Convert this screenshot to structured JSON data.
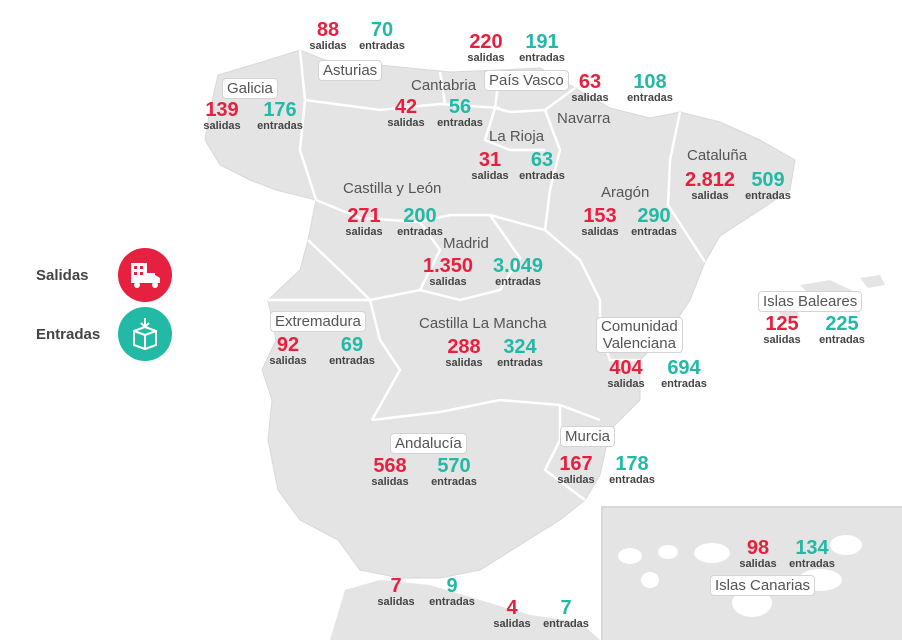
{
  "legend": {
    "salidas_label": "Salidas",
    "entradas_label": "Entradas",
    "salidas_icon": "building-truck-icon",
    "entradas_icon": "box-arrow-in-icon",
    "salidas_color": "#e8203f",
    "entradas_color": "#22b9a5"
  },
  "words": {
    "salidas": "salidas",
    "entradas": "entradas"
  },
  "regions": {
    "galicia": {
      "name": "Galicia",
      "salidas": "139",
      "entradas": "176"
    },
    "asturias": {
      "name": "Asturias",
      "salidas": "88",
      "entradas": "70"
    },
    "cantabria": {
      "name": "Cantabria",
      "salidas": "42",
      "entradas": "56"
    },
    "pais_vasco": {
      "name": "País Vasco",
      "salidas": "220",
      "entradas": "191"
    },
    "navarra": {
      "name": "Navarra",
      "salidas": "63",
      "entradas": "108"
    },
    "la_rioja": {
      "name": "La Rioja",
      "salidas": "31",
      "entradas": "63"
    },
    "cataluna": {
      "name": "Cataluña",
      "salidas": "2.812",
      "entradas": "509"
    },
    "castilla_leon": {
      "name": "Castilla y León",
      "salidas": "271",
      "entradas": "200"
    },
    "aragon": {
      "name": "Aragón",
      "salidas": "153",
      "entradas": "290"
    },
    "madrid": {
      "name": "Madrid",
      "salidas": "1.350",
      "entradas": "3.049"
    },
    "extremadura": {
      "name": "Extremadura",
      "salidas": "92",
      "entradas": "69"
    },
    "castilla_mancha": {
      "name": "Castilla La Mancha",
      "salidas": "288",
      "entradas": "324"
    },
    "c_valenciana": {
      "name_line1": "Comunidad",
      "name_line2": "Valenciana",
      "salidas": "404",
      "entradas": "694"
    },
    "baleares": {
      "name": "Islas Baleares",
      "salidas": "125",
      "entradas": "225"
    },
    "andalucia": {
      "name": "Andalucía",
      "salidas": "568",
      "entradas": "570"
    },
    "murcia": {
      "name": "Murcia",
      "salidas": "167",
      "entradas": "178"
    },
    "canarias": {
      "name": "Islas Canarias",
      "salidas": "98",
      "entradas": "134"
    },
    "ceuta": {
      "salidas": "7",
      "entradas": "9"
    },
    "melilla": {
      "salidas": "4",
      "entradas": "7"
    }
  },
  "colors": {
    "land": "#e4e4e4",
    "border": "#ffffff"
  }
}
